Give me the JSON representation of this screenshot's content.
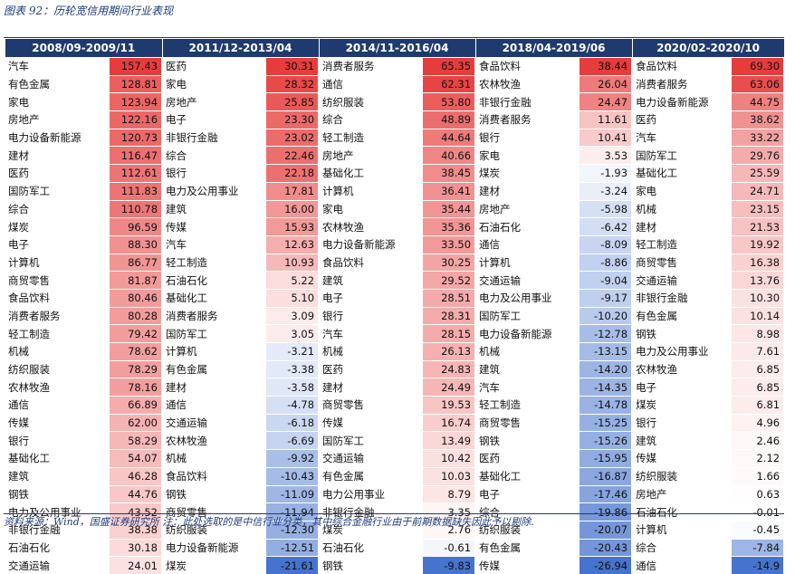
{
  "title": "图表 92：历轮宽信用期间行业表现",
  "footnote": "资料来源：Wind，国盛证券研究所 注：此处选取的是中信行业分类，其中综合金融行业由于前期数据缺失因此予以剔除.",
  "colors": {
    "header_bg": "#1f3a6e",
    "positive": "#e33b3b",
    "negative": "#3b6fcf"
  },
  "periods": [
    {
      "label": "2008/09-2009/11",
      "rows": [
        [
          "汽车",
          "157.43"
        ],
        [
          "有色金属",
          "128.81"
        ],
        [
          "家电",
          "123.94"
        ],
        [
          "房地产",
          "122.16"
        ],
        [
          "电力设备新能源",
          "120.73"
        ],
        [
          "建材",
          "116.47"
        ],
        [
          "医药",
          "112.61"
        ],
        [
          "国防军工",
          "111.83"
        ],
        [
          "综合",
          "110.78"
        ],
        [
          "煤炭",
          "96.59"
        ],
        [
          "电子",
          "88.30"
        ],
        [
          "计算机",
          "86.77"
        ],
        [
          "商贸零售",
          "81.87"
        ],
        [
          "食品饮料",
          "80.46"
        ],
        [
          "消费者服务",
          "80.28"
        ],
        [
          "轻工制造",
          "79.42"
        ],
        [
          "机械",
          "78.62"
        ],
        [
          "纺织服装",
          "78.29"
        ],
        [
          "农林牧渔",
          "78.16"
        ],
        [
          "通信",
          "66.89"
        ],
        [
          "传媒",
          "62.00"
        ],
        [
          "银行",
          "58.29"
        ],
        [
          "基础化工",
          "54.07"
        ],
        [
          "建筑",
          "46.28"
        ],
        [
          "钢铁",
          "44.76"
        ],
        [
          "电力及公用事业",
          "43.52"
        ],
        [
          "非银行金融",
          "38.38"
        ],
        [
          "石油石化",
          "30.18"
        ],
        [
          "交通运输",
          "24.01"
        ]
      ]
    },
    {
      "label": "2011/12-2013/04",
      "rows": [
        [
          "医药",
          "30.31"
        ],
        [
          "家电",
          "28.32"
        ],
        [
          "房地产",
          "25.85"
        ],
        [
          "电子",
          "23.30"
        ],
        [
          "非银行金融",
          "23.02"
        ],
        [
          "综合",
          "22.46"
        ],
        [
          "银行",
          "22.18"
        ],
        [
          "电力及公用事业",
          "17.81"
        ],
        [
          "建筑",
          "16.00"
        ],
        [
          "传媒",
          "15.93"
        ],
        [
          "汽车",
          "12.63"
        ],
        [
          "轻工制造",
          "10.93"
        ],
        [
          "石油石化",
          "5.22"
        ],
        [
          "基础化工",
          "5.10"
        ],
        [
          "消费者服务",
          "3.09"
        ],
        [
          "国防军工",
          "3.05"
        ],
        [
          "计算机",
          "-3.21"
        ],
        [
          "有色金属",
          "-3.38"
        ],
        [
          "建材",
          "-3.58"
        ],
        [
          "通信",
          "-4.78"
        ],
        [
          "交通运输",
          "-6.18"
        ],
        [
          "农林牧渔",
          "-6.69"
        ],
        [
          "机械",
          "-9.92"
        ],
        [
          "食品饮料",
          "-10.43"
        ],
        [
          "钢铁",
          "-11.09"
        ],
        [
          "商贸零售",
          "-11.94"
        ],
        [
          "纺织服装",
          "-12.30"
        ],
        [
          "电力设备新能源",
          "-12.51"
        ],
        [
          "煤炭",
          "-21.61"
        ]
      ]
    },
    {
      "label": "2014/11-2016/04",
      "rows": [
        [
          "消费者服务",
          "65.35"
        ],
        [
          "通信",
          "62.31"
        ],
        [
          "纺织服装",
          "53.80"
        ],
        [
          "综合",
          "48.89"
        ],
        [
          "轻工制造",
          "44.64"
        ],
        [
          "房地产",
          "40.66"
        ],
        [
          "基础化工",
          "38.45"
        ],
        [
          "计算机",
          "36.41"
        ],
        [
          "家电",
          "35.44"
        ],
        [
          "农林牧渔",
          "35.36"
        ],
        [
          "电力设备新能源",
          "33.50"
        ],
        [
          "食品饮料",
          "30.25"
        ],
        [
          "建筑",
          "29.52"
        ],
        [
          "电子",
          "28.51"
        ],
        [
          "银行",
          "28.31"
        ],
        [
          "汽车",
          "28.15"
        ],
        [
          "机械",
          "26.13"
        ],
        [
          "医药",
          "24.83"
        ],
        [
          "建材",
          "24.49"
        ],
        [
          "商贸零售",
          "19.53"
        ],
        [
          "传媒",
          "16.74"
        ],
        [
          "国防军工",
          "13.49"
        ],
        [
          "交通运输",
          "10.42"
        ],
        [
          "有色金属",
          "10.03"
        ],
        [
          "电力公用事业",
          "8.79"
        ],
        [
          "非银行金融",
          "3.35"
        ],
        [
          "煤炭",
          "2.76"
        ],
        [
          "石油石化",
          "-0.61"
        ],
        [
          "钢铁",
          "-9.83"
        ]
      ]
    },
    {
      "label": "2018/04-2019/06",
      "rows": [
        [
          "食品饮料",
          "38.44"
        ],
        [
          "农林牧渔",
          "26.04"
        ],
        [
          "非银行金融",
          "24.47"
        ],
        [
          "消费者服务",
          "11.61"
        ],
        [
          "银行",
          "10.41"
        ],
        [
          "家电",
          "3.53"
        ],
        [
          "煤炭",
          "-1.93"
        ],
        [
          "建材",
          "-3.24"
        ],
        [
          "房地产",
          "-5.98"
        ],
        [
          "石油石化",
          "-6.42"
        ],
        [
          "通信",
          "-8.09"
        ],
        [
          "计算机",
          "-8.86"
        ],
        [
          "交通运输",
          "-9.04"
        ],
        [
          "电力及公用事业",
          "-9.17"
        ],
        [
          "国防军工",
          "-10.20"
        ],
        [
          "电力设备新能源",
          "-12.78"
        ],
        [
          "机械",
          "-13.15"
        ],
        [
          "建筑",
          "-14.20"
        ],
        [
          "汽车",
          "-14.35"
        ],
        [
          "轻工制造",
          "-14.78"
        ],
        [
          "商贸零售",
          "-15.25"
        ],
        [
          "钢铁",
          "-15.26"
        ],
        [
          "医药",
          "-15.95"
        ],
        [
          "基础化工",
          "-16.87"
        ],
        [
          "电子",
          "-17.46"
        ],
        [
          "综合",
          "-19.86"
        ],
        [
          "纺织服装",
          "-20.07"
        ],
        [
          "有色金属",
          "-20.43"
        ],
        [
          "传媒",
          "-26.94"
        ]
      ]
    },
    {
      "label": "2020/02-2020/10",
      "rows": [
        [
          "食品饮料",
          "69.30"
        ],
        [
          "消费者服务",
          "63.06"
        ],
        [
          "电力设备新能源",
          "44.75"
        ],
        [
          "医药",
          "38.62"
        ],
        [
          "汽车",
          "33.22"
        ],
        [
          "国防军工",
          "29.76"
        ],
        [
          "基础化工",
          "25.59"
        ],
        [
          "家电",
          "24.71"
        ],
        [
          "机械",
          "23.15"
        ],
        [
          "建材",
          "21.53"
        ],
        [
          "轻工制造",
          "19.92"
        ],
        [
          "商贸零售",
          "16.38"
        ],
        [
          "交通运输",
          "13.76"
        ],
        [
          "非银行金融",
          "10.30"
        ],
        [
          "有色金属",
          "10.14"
        ],
        [
          "钢铁",
          "8.98"
        ],
        [
          "电力及公用事业",
          "7.61"
        ],
        [
          "农林牧渔",
          "6.85"
        ],
        [
          "电子",
          "6.85"
        ],
        [
          "煤炭",
          "6.81"
        ],
        [
          "银行",
          "4.96"
        ],
        [
          "建筑",
          "2.46"
        ],
        [
          "传媒",
          "2.12"
        ],
        [
          "纺织服装",
          "1.66"
        ],
        [
          "房地产",
          "0.63"
        ],
        [
          "石油石化",
          "-0.01"
        ],
        [
          "计算机",
          "-0.45"
        ],
        [
          "综合",
          "-7.84"
        ],
        [
          "通信",
          "-14.9"
        ]
      ]
    }
  ]
}
